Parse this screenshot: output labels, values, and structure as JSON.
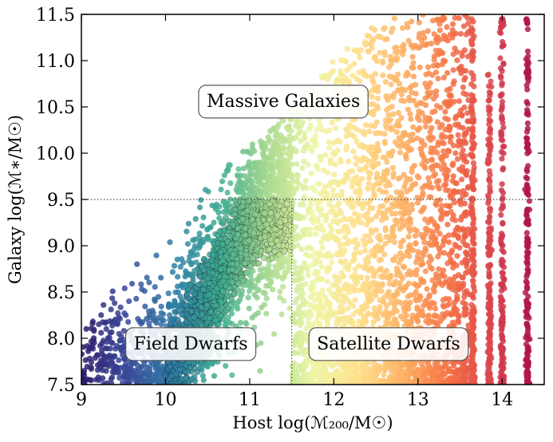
{
  "chart_data": {
    "type": "scatter",
    "title": "",
    "xlabel": "Host log(ℳ₂₀₀/M☉)",
    "ylabel": "Galaxy log(ℳ∗/M☉)",
    "xlim": [
      9.0,
      14.5
    ],
    "ylim": [
      7.5,
      11.5
    ],
    "xticks": [
      "9",
      "10",
      "11",
      "12",
      "13",
      "14"
    ],
    "yticks": [
      "7.5",
      "8.0",
      "8.5",
      "9.0",
      "9.5",
      "10.0",
      "10.5",
      "11.0",
      "11.5"
    ],
    "grid": false,
    "legend": "none",
    "colormap": "Spectral_r (color encodes host halo mass)",
    "colormap_stops": [
      "#2b1a6b",
      "#3a4a9a",
      "#2f7fa6",
      "#3fae93",
      "#a5d88e",
      "#eef6a6",
      "#fee08b",
      "#fdae61",
      "#f46d43",
      "#d53e4f",
      "#9e0142"
    ],
    "highlight_color": "#000000",
    "reference_lines": [
      {
        "orientation": "horizontal",
        "y": 9.5,
        "x_range": [
          9.0,
          14.5
        ],
        "style": "dotted"
      },
      {
        "orientation": "vertical",
        "x": 11.5,
        "y_range": [
          7.5,
          9.5
        ],
        "style": "dotted"
      }
    ],
    "ridge": {
      "x": [
        10.0,
        10.5,
        11.0,
        11.5
      ],
      "y": [
        7.5,
        8.4,
        9.3,
        9.5
      ]
    },
    "upper_envelope": {
      "x": [
        9.0,
        10.0,
        11.0,
        11.5,
        12.0,
        12.5,
        12.8,
        14.5
      ],
      "y": [
        8.1,
        9.2,
        10.1,
        10.5,
        11.0,
        11.4,
        11.5,
        11.5
      ]
    },
    "discrete_host_masses": [
      13.65,
      13.85,
      14.0,
      14.3
    ],
    "annotations": [
      {
        "text": "Massive Galaxies",
        "x": 11.4,
        "y": 10.57
      },
      {
        "text": "Field Dwarfs",
        "x": 10.3,
        "y": 7.95
      },
      {
        "text": "Satellite Dwarfs",
        "x": 12.65,
        "y": 7.95
      }
    ]
  }
}
